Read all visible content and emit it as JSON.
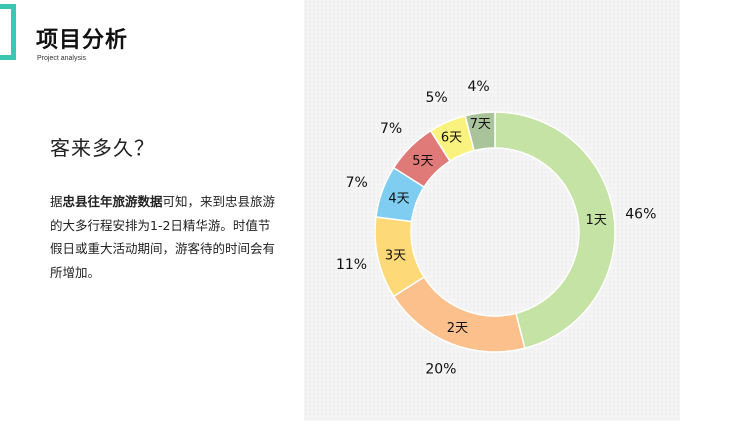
{
  "header": {
    "title": "项目分析",
    "subtitle": "Project analysis"
  },
  "content": {
    "question": "客来多久？",
    "paragraph_pre": "据",
    "paragraph_bold": "忠县往年旅游数据",
    "paragraph_post": "可知，来到忠县旅游的大多行程安排为1-2日精华游。时值节假日或重大活动期间，游客待的时间会有所增加。"
  },
  "chart_data": {
    "type": "pie",
    "title": "",
    "categories": [
      "1天",
      "2天",
      "3天",
      "4天",
      "5天",
      "6天",
      "7天"
    ],
    "values": [
      46,
      20,
      11,
      7,
      7,
      5,
      4
    ],
    "value_labels": [
      "46%",
      "20%",
      "11%",
      "7%",
      "7%",
      "5%",
      "4%"
    ],
    "colors": [
      "#c5e3a4",
      "#fcc08c",
      "#fdd977",
      "#7fcdf0",
      "#e07a78",
      "#f9f27f",
      "#a9c49b"
    ],
    "donut": true,
    "legend": "none"
  }
}
